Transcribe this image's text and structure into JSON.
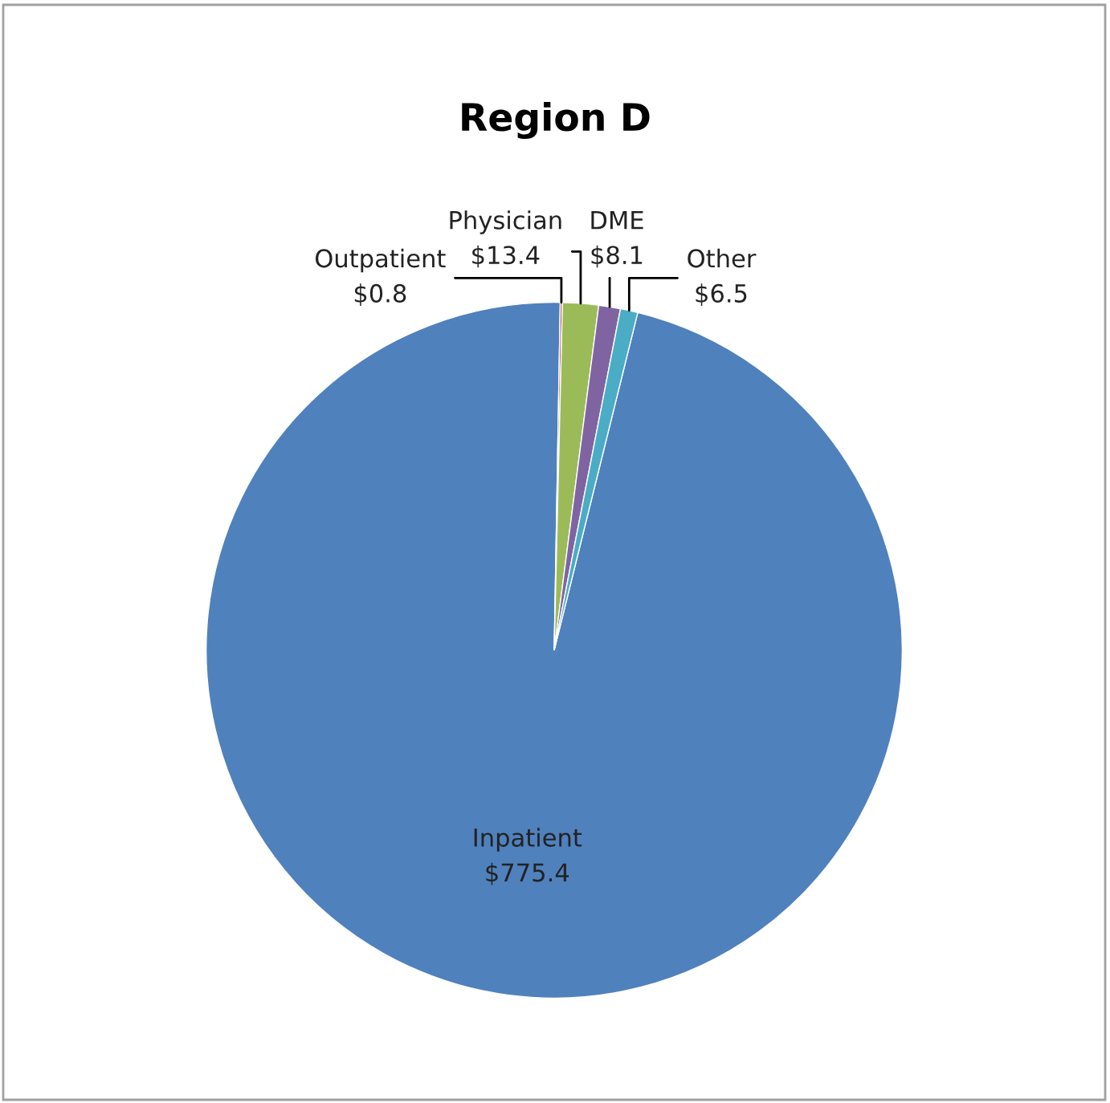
{
  "chart_data": {
    "type": "pie",
    "title": "Region D",
    "categories": [
      "Inpatient",
      "Outpatient",
      "Physician",
      "DME",
      "Other"
    ],
    "values": [
      775.4,
      0.8,
      13.4,
      8.1,
      6.5
    ],
    "value_labels": [
      "$775.4",
      "$0.8",
      "$13.4",
      "$8.1",
      "$6.5"
    ],
    "colors": [
      "#4f81bd",
      "#c0504d",
      "#9bbb59",
      "#8064a2",
      "#4bacc6"
    ],
    "legend": false
  }
}
